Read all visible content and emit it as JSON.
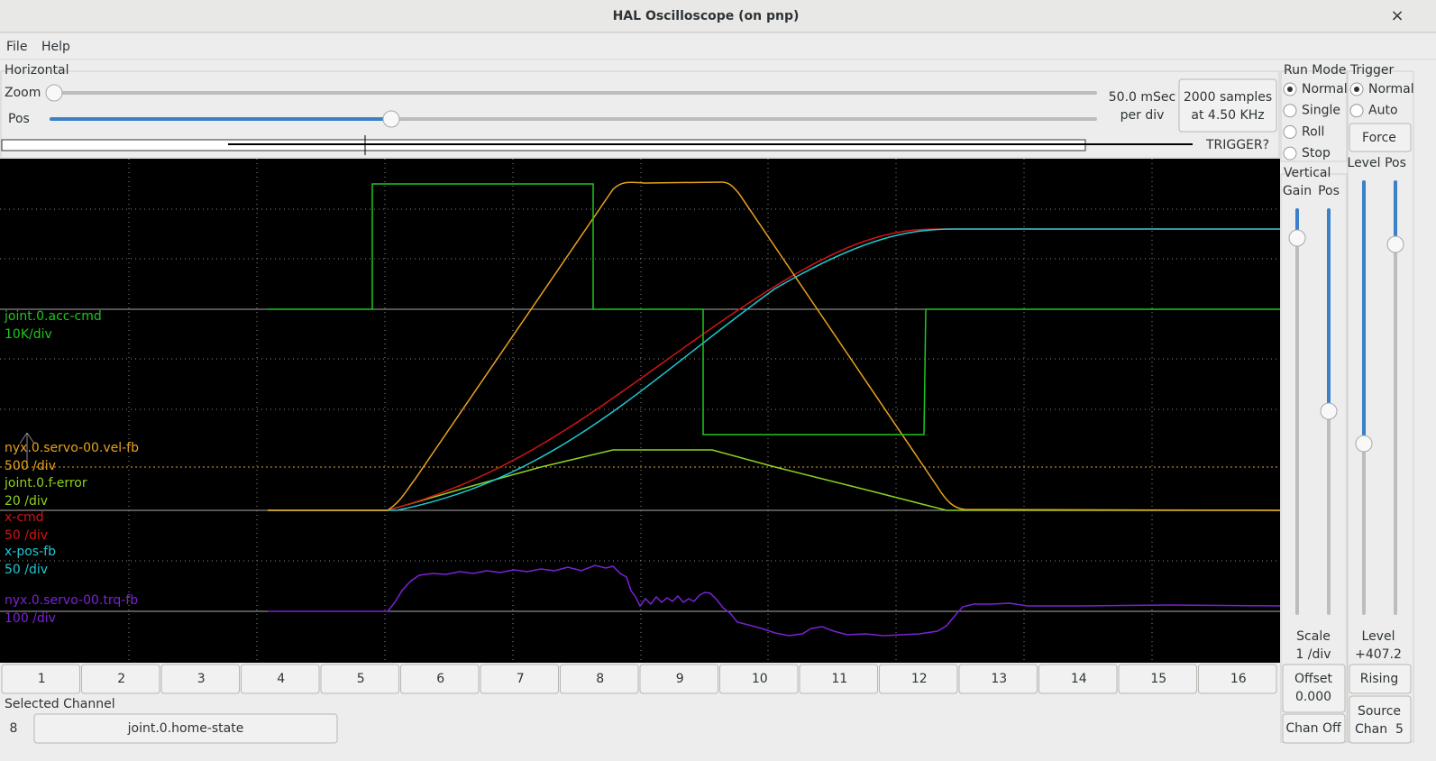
{
  "window": {
    "title": "HAL Oscilloscope (on pnp)",
    "close": "×"
  },
  "menu": [
    "File",
    "Help"
  ],
  "horizontal": {
    "label": "Horizontal",
    "zoom": "Zoom",
    "pos": "Pos",
    "rate": "50.0 mSec",
    "rate_unit": "per div",
    "samples": "2000 samples",
    "sample_rate": "at 4.50 KHz",
    "trigger_status": "TRIGGER?"
  },
  "traces": [
    {
      "name": "joint.0.acc-cmd",
      "scale": "10K/div",
      "color": "#1ec81e"
    },
    {
      "name": "nyx.0.servo-00.vel-fb",
      "scale": "500 /div",
      "color": "#e6a21e"
    },
    {
      "name": "joint.0.f-error",
      "scale": "20 /div",
      "color": "#8ed21e"
    },
    {
      "name": "x-cmd",
      "scale": "50 /div",
      "color": "#d21414"
    },
    {
      "name": "x-pos-fb",
      "scale": "50 /div",
      "color": "#1ec8d2"
    },
    {
      "name": "nyx.0.servo-00.trq-fb",
      "scale": "100 /div",
      "color": "#7a22d6"
    }
  ],
  "channels": [
    "1",
    "2",
    "3",
    "4",
    "5",
    "6",
    "7",
    "8",
    "9",
    "10",
    "11",
    "12",
    "13",
    "14",
    "15",
    "16"
  ],
  "selected_channel": {
    "label": "Selected Channel",
    "number": "8",
    "name": "joint.0.home-state"
  },
  "run_mode": {
    "label": "Run Mode",
    "options": [
      "Normal",
      "Single",
      "Roll",
      "Stop"
    ]
  },
  "vertical": {
    "label": "Vertical",
    "gain": "Gain",
    "pos": "Pos",
    "scale": "Scale",
    "scale_value": "1 /div",
    "offset": "Offset",
    "offset_value": "0.000",
    "chan_off": "Chan Off"
  },
  "trigger": {
    "label": "Trigger",
    "options": [
      "Normal",
      "Auto"
    ],
    "force": "Force",
    "level": "Level",
    "pos": "Pos",
    "level_label": "Level",
    "level_value": "+407.2",
    "edge": "Rising",
    "source": "Source",
    "source_chan": "Chan  5"
  }
}
